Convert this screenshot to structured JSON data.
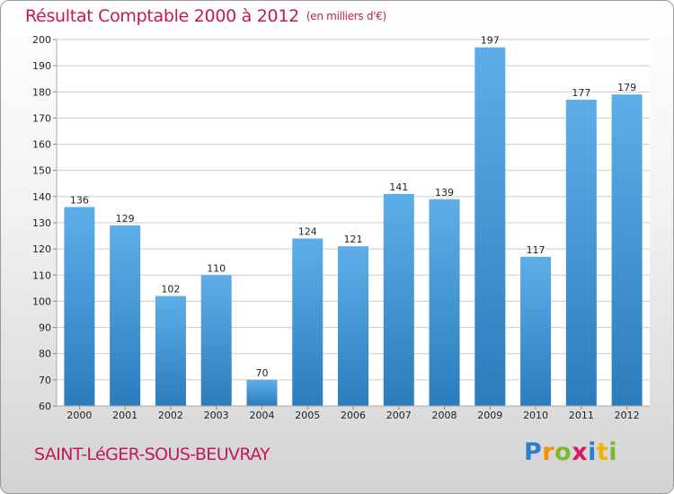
{
  "title": "Résultat Comptable 2000 à 2012",
  "subtitle": "(en milliers d'€)",
  "town": "SAINT-LéGER-SOUS-BEUVRAY",
  "logo": {
    "letters": [
      {
        "ch": "P",
        "color": "#2e7fc8"
      },
      {
        "ch": "r",
        "color": "#f29100"
      },
      {
        "ch": "o",
        "color": "#7cb82f"
      },
      {
        "ch": "x",
        "color": "#d81b60"
      },
      {
        "ch": "i",
        "color": "#2e7fc8"
      },
      {
        "ch": "t",
        "color": "#f2b200"
      },
      {
        "ch": "i",
        "color": "#7cb82f"
      }
    ]
  },
  "colors": {
    "title": "#c2185b",
    "bar_light": "#5daee8",
    "bar_dark": "#2b7cbd",
    "grid": "#cccccc"
  },
  "chart_data": {
    "type": "bar",
    "categories": [
      "2000",
      "2001",
      "2002",
      "2003",
      "2004",
      "2005",
      "2006",
      "2007",
      "2008",
      "2009",
      "2010",
      "2011",
      "2012"
    ],
    "values": [
      136,
      129,
      102,
      110,
      70,
      124,
      121,
      141,
      139,
      197,
      117,
      177,
      179
    ],
    "title": "Résultat Comptable 2000 à 2012",
    "ylim": [
      60,
      200
    ],
    "yticks": [
      60,
      70,
      80,
      90,
      100,
      110,
      120,
      130,
      140,
      150,
      160,
      170,
      180,
      190,
      200
    ],
    "grid": true,
    "data_labels": true
  }
}
